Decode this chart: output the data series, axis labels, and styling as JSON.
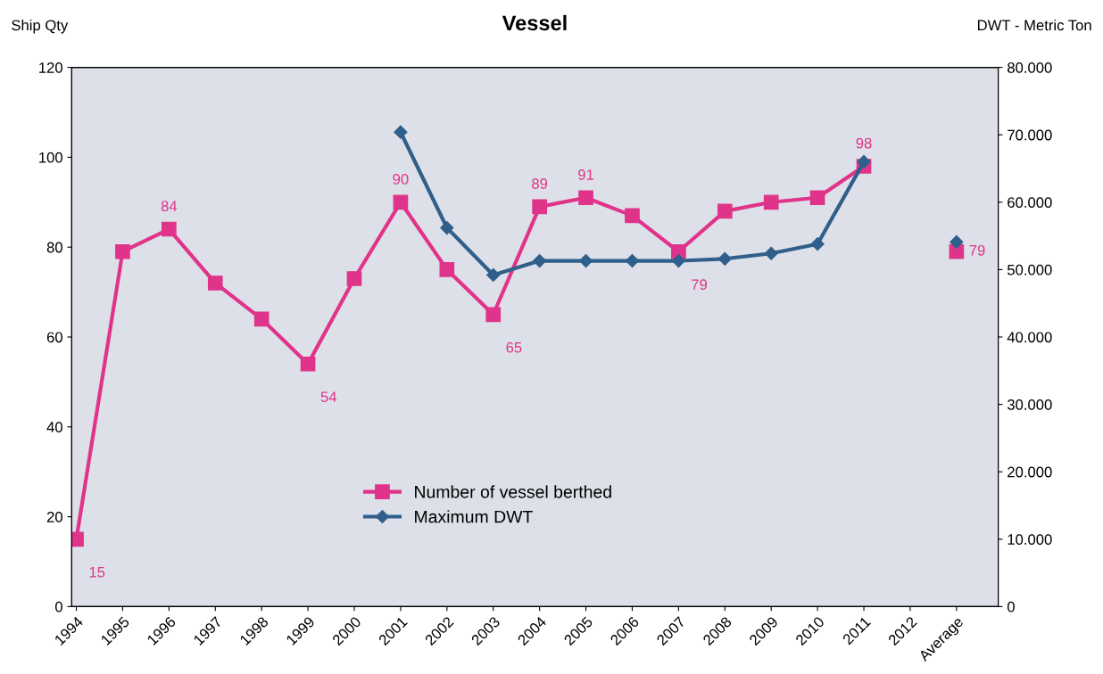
{
  "chart_data": {
    "type": "line",
    "title": "Vessel",
    "ylabel": "Ship Qty",
    "y2label": "DWT - Metric Ton",
    "categories": [
      "1994",
      "1995",
      "1996",
      "1997",
      "1998",
      "1999",
      "2000",
      "2001",
      "2002",
      "2003",
      "2004",
      "2005",
      "2006",
      "2007",
      "2008",
      "2009",
      "2010",
      "2011",
      "2012",
      "Average"
    ],
    "series": [
      {
        "name": "Number of vessel berthed",
        "color": "#e0338a",
        "marker": "square",
        "values": [
          15,
          79,
          84,
          72,
          64,
          54,
          73,
          90,
          75,
          65,
          89,
          91,
          87,
          79,
          88,
          90,
          91,
          98,
          null,
          79
        ],
        "value_labels": [
          "15",
          null,
          "84",
          null,
          null,
          "54",
          null,
          "90",
          null,
          "65",
          "89",
          "91",
          null,
          "79",
          null,
          null,
          null,
          "98",
          null,
          "79"
        ]
      },
      {
        "name": "Maximum DWT",
        "color": "#2f5f8a",
        "marker": "diamond",
        "axis": "y2",
        "values": [
          null,
          null,
          null,
          null,
          null,
          null,
          null,
          70400,
          56200,
          49200,
          51300,
          51300,
          51300,
          51300,
          51600,
          52400,
          53800,
          66000,
          null,
          54100
        ]
      }
    ],
    "ylim": [
      0,
      120
    ],
    "yticks": [
      0,
      20,
      40,
      60,
      80,
      100,
      120
    ],
    "y2lim": [
      0,
      80000
    ],
    "y2ticks": [
      0,
      {
        "value": 10000,
        "label": "10.000"
      },
      {
        "value": 20000,
        "label": "20.000"
      },
      {
        "value": 30000,
        "label": "30.000"
      },
      {
        "value": 40000,
        "label": "40.000"
      },
      {
        "value": 50000,
        "label": "50.000"
      },
      {
        "value": 60000,
        "label": "60.000"
      },
      {
        "value": 70000,
        "label": "70.000"
      },
      {
        "value": 80000,
        "label": "80.000"
      }
    ],
    "grid": false,
    "legend": "bottom"
  }
}
